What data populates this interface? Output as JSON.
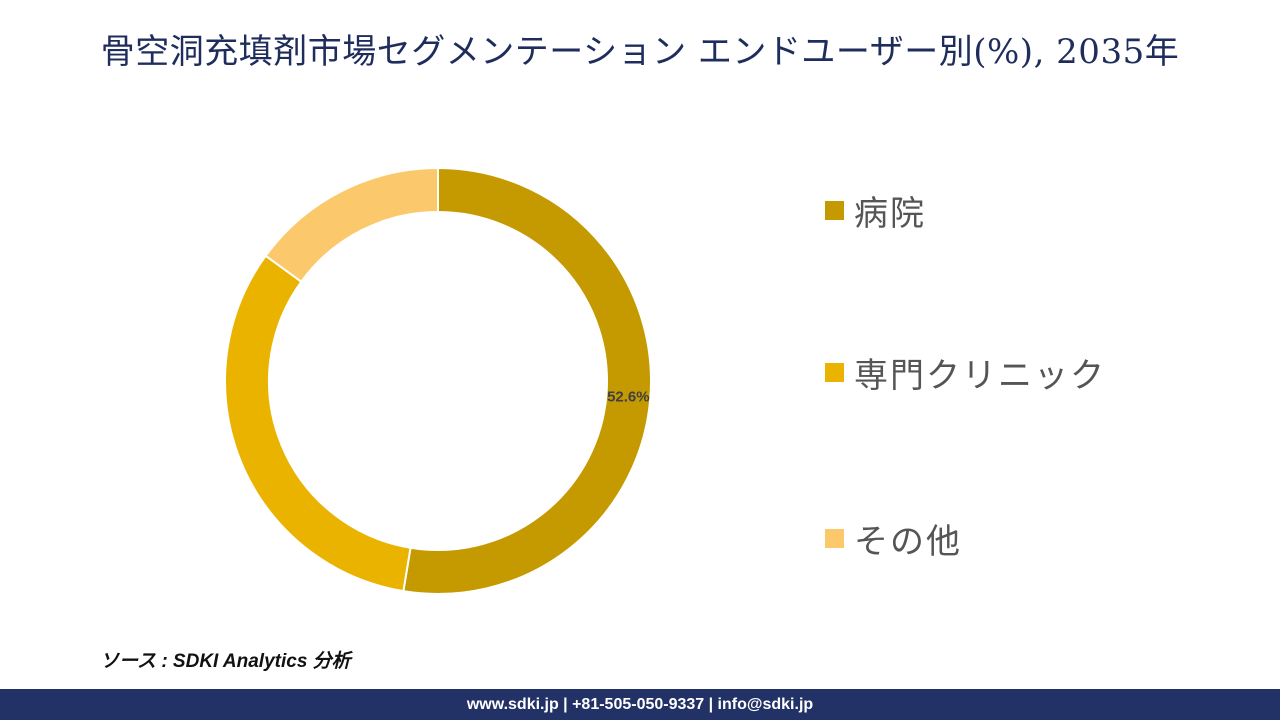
{
  "title": "骨空洞充填剤市場セグメンテーション エンドユーザー別(%), 2035年",
  "chart_data": {
    "type": "pie",
    "donut": true,
    "categories": [
      "病院",
      "専門クリニック",
      "その他"
    ],
    "values": [
      52.6,
      32.4,
      15.0
    ],
    "colors": [
      "#c59a00",
      "#eab300",
      "#fbc96b"
    ],
    "data_labels": [
      "52.6%",
      "",
      ""
    ],
    "legend_position": "right"
  },
  "source": "ソース : SDKI Analytics 分析",
  "footer": "www.sdki.jp | +81-505-050-9337 | info@sdki.jp"
}
